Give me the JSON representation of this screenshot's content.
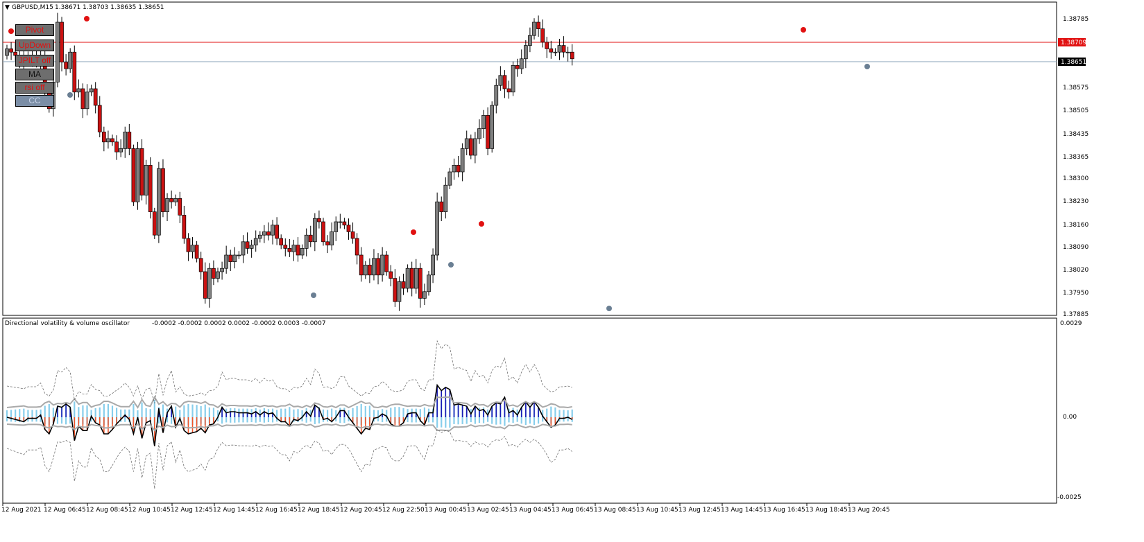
{
  "symbol_header": {
    "symbol": "GBPUSD,M15",
    "ohlc": "1.38671 1.38703 1.38635 1.38651"
  },
  "buttons": {
    "pivot": "Pivot",
    "updown": "UpDown",
    "jpilt": "JPILT off",
    "ma": "MA",
    "rsi": "rsi off",
    "cc": "CC"
  },
  "price_axis": {
    "ticks": [
      "1.38785",
      "1.38709",
      "1.38651",
      "1.38575",
      "1.38505",
      "1.38435",
      "1.38365",
      "1.38300",
      "1.38230",
      "1.38160",
      "1.38090",
      "1.38020",
      "1.37950",
      "1.37885"
    ],
    "marker_red": "1.38709",
    "marker_black": "1.38651"
  },
  "oscillator": {
    "title": "Directional volatility & volume oscillator",
    "values": "-0.0002 -0.0002 0.0002 0.0002 -0.0002 0.0003 -0.0007",
    "axis_ticks": [
      "0.0029",
      "0.00",
      "-0.0025"
    ]
  },
  "time_axis": {
    "labels": [
      "12 Aug 2021",
      "12 Aug 06:45",
      "12 Aug 08:45",
      "12 Aug 10:45",
      "12 Aug 12:45",
      "12 Aug 14:45",
      "12 Aug 16:45",
      "12 Aug 18:45",
      "12 Aug 20:45",
      "12 Aug 22:50",
      "13 Aug 00:45",
      "13 Aug 02:45",
      "13 Aug 04:45",
      "13 Aug 06:45",
      "13 Aug 08:45",
      "13 Aug 10:45",
      "13 Aug 12:45",
      "13 Aug 14:45",
      "13 Aug 16:45",
      "13 Aug 18:45",
      "13 Aug 20:45"
    ]
  },
  "chart_data": {
    "type": "candlestick",
    "price_range": [
      1.37885,
      1.38785
    ],
    "closes": [
      1.3868,
      1.3867,
      1.3866,
      1.3865,
      1.3864,
      1.3866,
      1.3865,
      1.3864,
      1.3866,
      1.3855,
      1.385,
      1.3858,
      1.3876,
      1.3864,
      1.3862,
      1.3867,
      1.3855,
      1.3856,
      1.385,
      1.3855,
      1.3856,
      1.3851,
      1.3843,
      1.384,
      1.3841,
      1.384,
      1.3837,
      1.3838,
      1.3843,
      1.3838,
      1.3822,
      1.3838,
      1.3824,
      1.3833,
      1.3819,
      1.3812,
      1.3832,
      1.3819,
      1.3823,
      1.3822,
      1.3823,
      1.3818,
      1.3811,
      1.3807,
      1.3809,
      1.3805,
      1.3801,
      1.3793,
      1.3802,
      1.3799,
      1.3801,
      1.3802,
      1.3806,
      1.3804,
      1.3806,
      1.3806,
      1.381,
      1.3808,
      1.3809,
      1.3811,
      1.3812,
      1.3813,
      1.3812,
      1.3815,
      1.3811,
      1.3809,
      1.3808,
      1.3807,
      1.3809,
      1.3806,
      1.3808,
      1.3812,
      1.381,
      1.3817,
      1.3816,
      1.381,
      1.3809,
      1.3813,
      1.3816,
      1.3816,
      1.3815,
      1.3813,
      1.3811,
      1.3806,
      1.38,
      1.3803,
      1.38,
      1.3805,
      1.38,
      1.3806,
      1.3801,
      1.3799,
      1.3792,
      1.3798,
      1.3796,
      1.3802,
      1.3796,
      1.3802,
      1.3793,
      1.3795,
      1.38,
      1.3806,
      1.3822,
      1.3819,
      1.3827,
      1.3831,
      1.3833,
      1.3831,
      1.3838,
      1.3841,
      1.3836,
      1.3841,
      1.3844,
      1.3848,
      1.3838,
      1.3851,
      1.3857,
      1.386,
      1.3856,
      1.3855,
      1.3863,
      1.3862,
      1.3865,
      1.3869,
      1.3872,
      1.3876,
      1.3874,
      1.387,
      1.3868,
      1.3867,
      1.3867,
      1.3869,
      1.3867,
      1.3867,
      1.3865
    ],
    "oscillator_range": [
      -0.0025,
      0.0029
    ]
  }
}
